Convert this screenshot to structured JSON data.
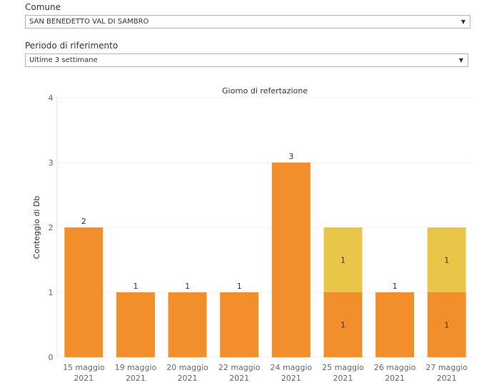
{
  "filters": {
    "comune": {
      "label": "Comune",
      "value": "SAN BENEDETTO VAL DI SAMBRO"
    },
    "periodo": {
      "label": "Periodo di riferimento",
      "value": "Ultime 3 settimane"
    }
  },
  "icons": {
    "dropdown": "chevron-down-icon"
  },
  "colors": {
    "series_primary": "#f28e2b",
    "series_secondary": "#e9c647"
  },
  "chart_data": {
    "type": "bar",
    "stacked": true,
    "title": "Giorno di refertazione",
    "xlabel": "",
    "ylabel": "Conteggio di Db",
    "ylim": [
      0,
      4
    ],
    "yticks": [
      0,
      1,
      2,
      3,
      4
    ],
    "grid": true,
    "categories": [
      [
        "15 maggio",
        "2021"
      ],
      [
        "19 maggio",
        "2021"
      ],
      [
        "20 maggio",
        "2021"
      ],
      [
        "22 maggio",
        "2021"
      ],
      [
        "24 maggio",
        "2021"
      ],
      [
        "25 maggio",
        "2021"
      ],
      [
        "26 maggio",
        "2021"
      ],
      [
        "27 maggio",
        "2021"
      ]
    ],
    "series": [
      {
        "color": "#f28e2b",
        "values": [
          2,
          1,
          1,
          1,
          3,
          1,
          1,
          1
        ]
      },
      {
        "color": "#e9c647",
        "values": [
          0,
          0,
          0,
          0,
          0,
          1,
          0,
          1
        ]
      }
    ]
  }
}
